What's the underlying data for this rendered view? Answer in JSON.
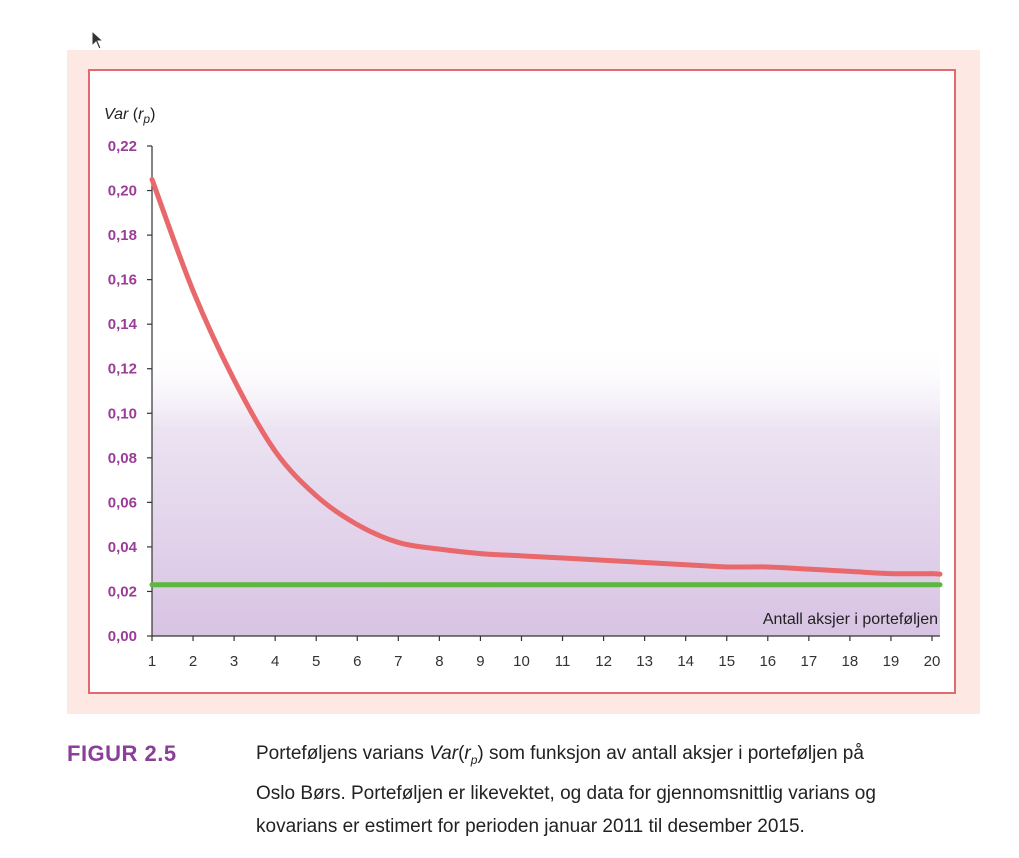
{
  "caption": {
    "label": "FIGUR 2.5",
    "line1_pre": "Porteføljens varians ",
    "line1_var": "Var",
    "line1_r": "r",
    "line1_sub": "p",
    "line1_post": " som funksjon av antall aksjer i porteføljen på",
    "line2": "Oslo Børs. Porteføljen er likevektet, og data for gjennomsnittlig varians og",
    "line3": "kovarians er estimert for perioden januar 2011 til desember 2015."
  },
  "chart_data": {
    "type": "line",
    "ylabel_var": "Var",
    "ylabel_r": "r",
    "ylabel_sub": "p",
    "xlabel": "Antall aksjer i porteføljen",
    "x": [
      1,
      2,
      3,
      4,
      5,
      6,
      7,
      8,
      9,
      10,
      11,
      12,
      13,
      14,
      15,
      16,
      17,
      18,
      19,
      20
    ],
    "xlim": [
      1,
      20
    ],
    "ylim": [
      0,
      0.22
    ],
    "yticks": [
      "0,00",
      "0,02",
      "0,04",
      "0,06",
      "0,08",
      "0,10",
      "0,12",
      "0,14",
      "0,16",
      "0,18",
      "0,20",
      "0,22"
    ],
    "ytick_values": [
      0,
      0.02,
      0.04,
      0.06,
      0.08,
      0.1,
      0.12,
      0.14,
      0.16,
      0.18,
      0.2,
      0.22
    ],
    "series": [
      {
        "values": [
          0.205,
          0.155,
          0.115,
          0.083,
          0.063,
          0.05,
          0.042,
          0.039,
          0.037,
          0.036,
          0.035,
          0.034,
          0.033,
          0.032,
          0.031,
          0.031,
          0.03,
          0.029,
          0.028,
          0.028
        ],
        "color": "#e8686c"
      },
      {
        "values": [
          0.023,
          0.023,
          0.023,
          0.023,
          0.023,
          0.023,
          0.023,
          0.023,
          0.023,
          0.023,
          0.023,
          0.023,
          0.023,
          0.023,
          0.023,
          0.023,
          0.023,
          0.023,
          0.023,
          0.023
        ],
        "color": "#5cb63f"
      }
    ],
    "grid": false,
    "colors": {
      "tick_label": "#9a3d97",
      "axis": "#333333",
      "frame": "#e16a6e",
      "background": "#fde8e4",
      "fill_bottom": "#d8c3e3"
    }
  }
}
